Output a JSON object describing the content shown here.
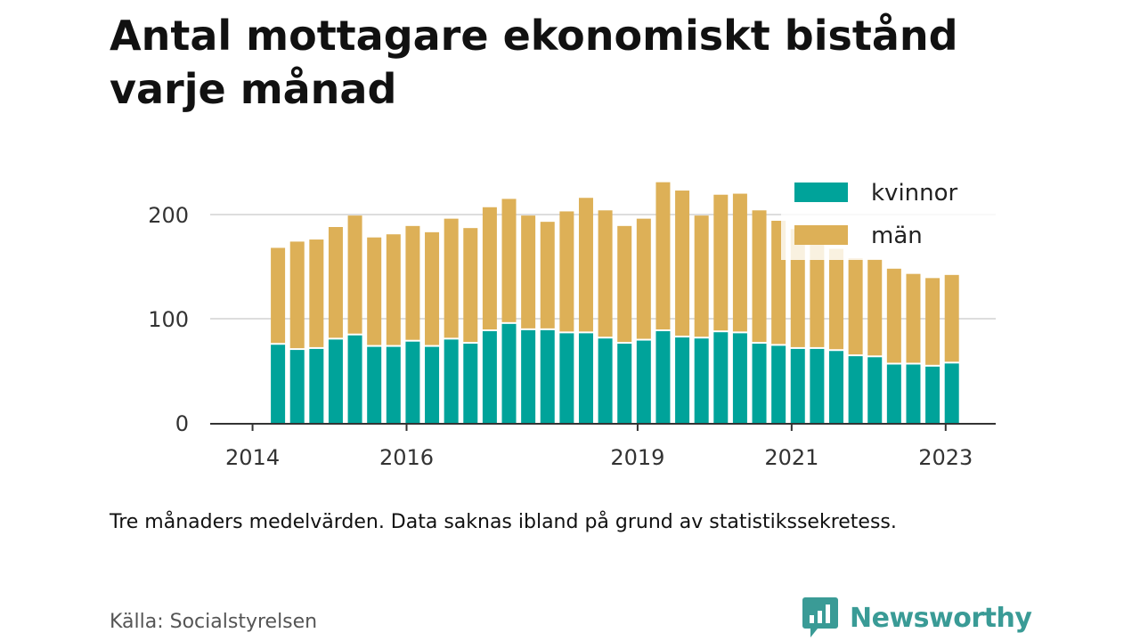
{
  "chart_data": {
    "type": "bar",
    "stacked": true,
    "title": "Antal mottagare ekonomiskt bistånd varje månad",
    "xlabel": "",
    "ylabel": "",
    "ylim": [
      0,
      235
    ],
    "yticks": [
      0,
      100,
      200
    ],
    "xlim": [
      2013.45,
      2023.65
    ],
    "xticks": [
      2014,
      2016,
      2019,
      2021,
      2023
    ],
    "x": [
      2014.33,
      2014.58,
      2014.83,
      2015.08,
      2015.33,
      2015.58,
      2015.83,
      2016.08,
      2016.33,
      2016.58,
      2016.83,
      2017.08,
      2017.33,
      2017.58,
      2017.83,
      2018.08,
      2018.33,
      2018.58,
      2018.83,
      2019.08,
      2019.33,
      2019.58,
      2019.83,
      2020.08,
      2020.33,
      2020.58,
      2020.83,
      2021.08,
      2021.33,
      2021.58,
      2021.83,
      2022.08,
      2022.33,
      2022.58,
      2022.83,
      2023.08
    ],
    "series": [
      {
        "name": "kvinnor",
        "color": "#00a39a",
        "values": [
          75,
          70,
          71,
          80,
          84,
          73,
          73,
          78,
          73,
          80,
          76,
          88,
          95,
          89,
          89,
          86,
          86,
          81,
          76,
          79,
          88,
          82,
          81,
          87,
          86,
          76,
          74,
          71,
          71,
          69,
          64,
          63,
          56,
          56,
          54,
          57
        ]
      },
      {
        "name": "män",
        "color": "#ddb057",
        "values": [
          93,
          104,
          105,
          108,
          115,
          105,
          108,
          111,
          110,
          116,
          111,
          119,
          120,
          110,
          104,
          117,
          130,
          123,
          113,
          117,
          143,
          141,
          118,
          132,
          134,
          128,
          120,
          115,
          109,
          98,
          94,
          94,
          92,
          87,
          85,
          85
        ]
      }
    ],
    "grid": true,
    "legend": "top-right"
  },
  "note": "Tre månaders medelvärden. Data saknas ibland på grund av statistikssekretess.",
  "source": "Källa: Socialstyrelsen",
  "brand": {
    "name": "Newsworthy",
    "icon": "newsworthy-logo-icon",
    "color": "#3a9b96"
  }
}
